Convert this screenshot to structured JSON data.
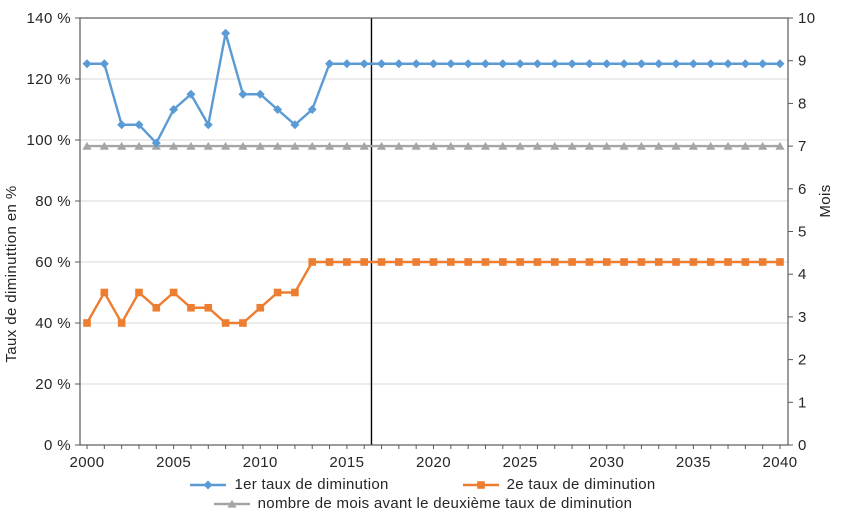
{
  "chart_data": {
    "type": "line",
    "title": "",
    "x_axis": {
      "min": 2000,
      "max": 2040,
      "tick_step": 1,
      "label_step": 5,
      "tick_labels": [
        "2000",
        "2005",
        "2010",
        "2015",
        "2020",
        "2025",
        "2030",
        "2035",
        "2040"
      ]
    },
    "left_axis": {
      "label": "Taux de diminuttion en %",
      "min": 0,
      "max": 140,
      "step": 20,
      "suffix": " %",
      "tick_labels": [
        "0 %",
        "20 %",
        "40 %",
        "60 %",
        "80 %",
        "100 %",
        "120 %",
        "140 %"
      ]
    },
    "right_axis": {
      "label": "Mois",
      "min": 0,
      "max": 10,
      "step": 1,
      "suffix": ""
    },
    "grid": "horizontal",
    "legend_position": "bottom",
    "vline": {
      "x": 2016.42,
      "color": "#000000"
    },
    "colors": {
      "gridline": "#d9d9d9",
      "axis": "#595959",
      "text": "#262626",
      "background": "#ffffff"
    },
    "x": [
      2000,
      2001,
      2002,
      2003,
      2004,
      2005,
      2006,
      2007,
      2008,
      2009,
      2010,
      2011,
      2012,
      2013,
      2014,
      2015,
      2016,
      2017,
      2018,
      2019,
      2020,
      2021,
      2022,
      2023,
      2024,
      2025,
      2026,
      2027,
      2028,
      2029,
      2030,
      2031,
      2032,
      2033,
      2034,
      2035,
      2036,
      2037,
      2038,
      2039,
      2040
    ],
    "series": [
      {
        "name": "1er taux de diminution",
        "color": "#5B9BD5",
        "marker": "diamond",
        "axis": "left",
        "values": [
          125,
          125,
          105,
          105,
          99,
          110,
          115,
          105,
          135,
          115,
          115,
          110,
          105,
          110,
          125,
          125,
          125,
          125,
          125,
          125,
          125,
          125,
          125,
          125,
          125,
          125,
          125,
          125,
          125,
          125,
          125,
          125,
          125,
          125,
          125,
          125,
          125,
          125,
          125,
          125,
          125
        ]
      },
      {
        "name": "2e taux de diminution",
        "color": "#ED7D31",
        "marker": "square",
        "axis": "left",
        "values": [
          40,
          50,
          40,
          50,
          45,
          50,
          45,
          45,
          40,
          40,
          45,
          50,
          50,
          60,
          60,
          60,
          60,
          60,
          60,
          60,
          60,
          60,
          60,
          60,
          60,
          60,
          60,
          60,
          60,
          60,
          60,
          60,
          60,
          60,
          60,
          60,
          60,
          60,
          60,
          60,
          60
        ]
      },
      {
        "name": "nombre de mois avant le deuxième taux de diminution",
        "color": "#A5A5A5",
        "marker": "triangle",
        "axis": "right",
        "values": [
          7,
          7,
          7,
          7,
          7,
          7,
          7,
          7,
          7,
          7,
          7,
          7,
          7,
          7,
          7,
          7,
          7,
          7,
          7,
          7,
          7,
          7,
          7,
          7,
          7,
          7,
          7,
          7,
          7,
          7,
          7,
          7,
          7,
          7,
          7,
          7,
          7,
          7,
          7,
          7,
          7
        ]
      }
    ]
  }
}
